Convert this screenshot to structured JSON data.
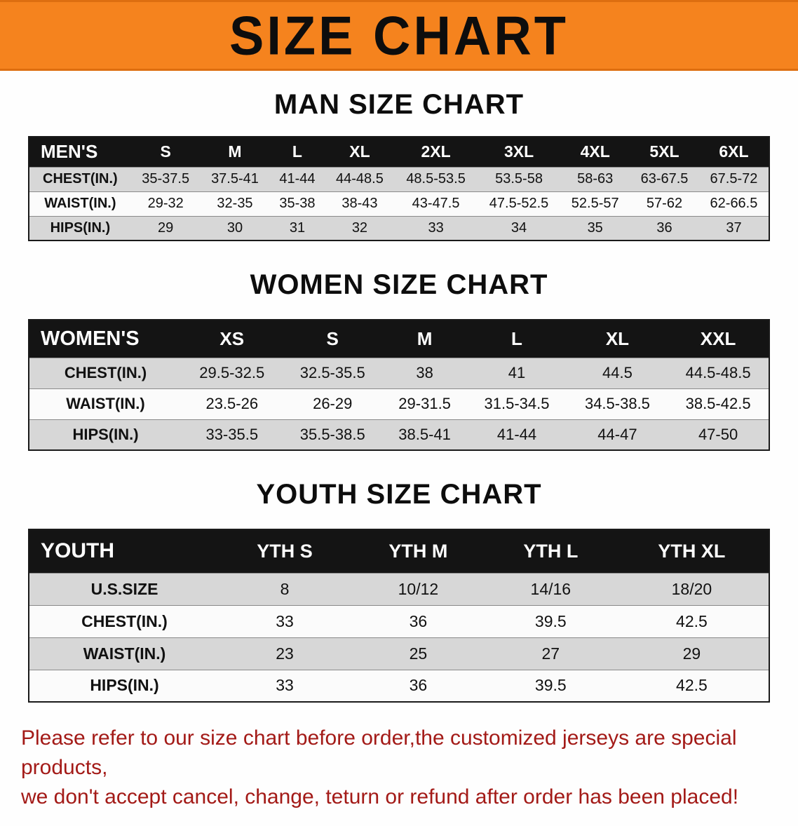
{
  "banner": {
    "title": "SIZE CHART",
    "bg_color": "#f5831e"
  },
  "sections": [
    {
      "id": "men",
      "heading": "MAN SIZE CHART",
      "table": {
        "header": [
          "MEN'S",
          "S",
          "M",
          "L",
          "XL",
          "2XL",
          "3XL",
          "4XL",
          "5XL",
          "6XL"
        ],
        "rows": [
          [
            "CHEST(IN.)",
            "35-37.5",
            "37.5-41",
            "41-44",
            "44-48.5",
            "48.5-53.5",
            "53.5-58",
            "58-63",
            "63-67.5",
            "67.5-72"
          ],
          [
            "WAIST(IN.)",
            "29-32",
            "32-35",
            "35-38",
            "38-43",
            "43-47.5",
            "47.5-52.5",
            "52.5-57",
            "57-62",
            "62-66.5"
          ],
          [
            "HIPS(IN.)",
            "29",
            "30",
            "31",
            "32",
            "33",
            "34",
            "35",
            "36",
            "37"
          ]
        ]
      }
    },
    {
      "id": "women",
      "heading": "WOMEN SIZE CHART",
      "table": {
        "header": [
          "WOMEN'S",
          "XS",
          "S",
          "M",
          "L",
          "XL",
          "XXL"
        ],
        "rows": [
          [
            "CHEST(IN.)",
            "29.5-32.5",
            "32.5-35.5",
            "38",
            "41",
            "44.5",
            "44.5-48.5"
          ],
          [
            "WAIST(IN.)",
            "23.5-26",
            "26-29",
            "29-31.5",
            "31.5-34.5",
            "34.5-38.5",
            "38.5-42.5"
          ],
          [
            "HIPS(IN.)",
            "33-35.5",
            "35.5-38.5",
            "38.5-41",
            "41-44",
            "44-47",
            "47-50"
          ]
        ]
      }
    },
    {
      "id": "youth",
      "heading": "YOUTH SIZE CHART",
      "table": {
        "header": [
          "YOUTH",
          "YTH S",
          "YTH M",
          "YTH L",
          "YTH XL"
        ],
        "rows": [
          [
            "U.S.SIZE",
            "8",
            "10/12",
            "14/16",
            "18/20"
          ],
          [
            "CHEST(IN.)",
            "33",
            "36",
            "39.5",
            "42.5"
          ],
          [
            "WAIST(IN.)",
            "23",
            "25",
            "27",
            "29"
          ],
          [
            "HIPS(IN.)",
            "33",
            "36",
            "39.5",
            "42.5"
          ]
        ]
      }
    }
  ],
  "footer": {
    "line1": "Please refer to our size chart before order,the customized jerseys are special products,",
    "line2": "we don't accept cancel, change, teturn or refund after order has been placed!",
    "text_color": "#a31a17"
  }
}
